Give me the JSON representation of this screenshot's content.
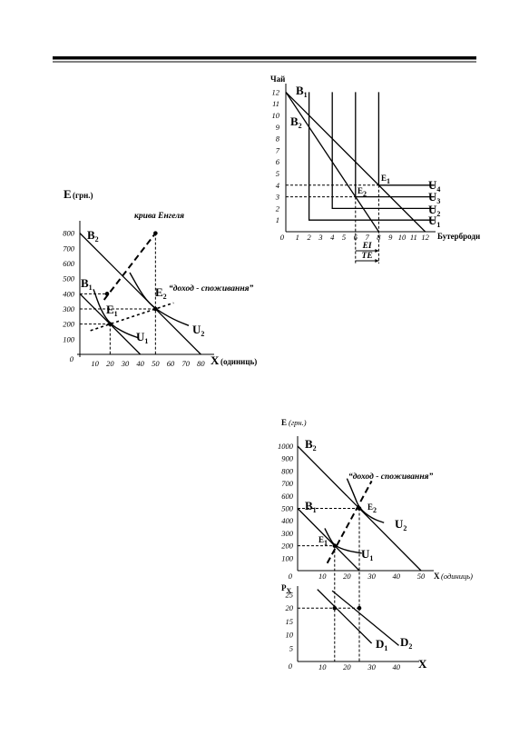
{
  "engel_diagram": {
    "y_label": "E",
    "y_unit": "(грн.)",
    "x_label": "X",
    "x_unit": "(одиниць)",
    "origin": "0",
    "x_ticks": [
      10,
      20,
      30,
      40,
      50,
      60,
      70,
      80
    ],
    "y_ticks": [
      100,
      200,
      300,
      400,
      500,
      600,
      700,
      800
    ],
    "engel_curve": "крива Енгеля",
    "icc": "“доход - споживання”",
    "labels": [
      {
        "base": "B",
        "sub": "2"
      },
      {
        "base": "B",
        "sub": "1"
      },
      {
        "base": "E",
        "sub": "2"
      },
      {
        "base": "E",
        "sub": "1"
      },
      {
        "base": "U",
        "sub": "2"
      },
      {
        "base": "U",
        "sub": "1"
      }
    ]
  },
  "tea_diagram": {
    "y_label": "Чай",
    "x_label": "Бутерброди",
    "origin": "0",
    "x_ticks": [
      1,
      2,
      3,
      4,
      5,
      6,
      7,
      8,
      9,
      10,
      11,
      12
    ],
    "y_ticks": [
      1,
      2,
      3,
      4,
      5,
      6,
      7,
      8,
      9,
      10,
      11,
      12
    ],
    "labels": [
      {
        "base": "B",
        "sub": "1"
      },
      {
        "base": "B",
        "sub": "2"
      },
      {
        "base": "E",
        "sub": "1"
      },
      {
        "base": "E",
        "sub": "2"
      },
      {
        "base": "U",
        "sub": "4"
      },
      {
        "base": "U",
        "sub": "3"
      },
      {
        "base": "U",
        "sub": "2"
      },
      {
        "base": "U",
        "sub": "1"
      }
    ],
    "income_effect": "EI",
    "total_effect": "TE"
  },
  "demand_diagram": {
    "y_label": "E",
    "y_unit": "(грн.)",
    "x_label": "X",
    "x_unit": "(одиниць)",
    "origin": "0",
    "x_ticks": [
      10,
      20,
      30,
      40,
      50
    ],
    "y_ticks": [
      100,
      200,
      300,
      400,
      500,
      600,
      700,
      800,
      900,
      1000
    ],
    "icc": "“доход - споживання”",
    "labels": [
      {
        "base": "B",
        "sub": "2"
      },
      {
        "base": "B",
        "sub": "1"
      },
      {
        "base": "E",
        "sub": "2"
      },
      {
        "base": "E",
        "sub": "1"
      },
      {
        "base": "U",
        "sub": "2"
      },
      {
        "base": "U",
        "sub": "1"
      }
    ],
    "lower": {
      "y_label": {
        "base": "P",
        "sub": "X"
      },
      "x_label": "X",
      "origin": "0",
      "x_ticks": [
        10,
        20,
        30,
        40
      ],
      "y_ticks": [
        5,
        10,
        15,
        20,
        25
      ],
      "labels": [
        {
          "base": "D",
          "sub": "1"
        },
        {
          "base": "D",
          "sub": "2"
        }
      ]
    }
  }
}
